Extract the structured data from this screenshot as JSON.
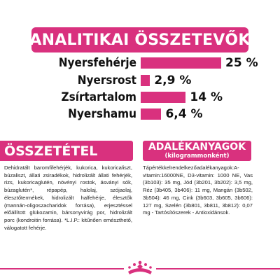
{
  "analytical": {
    "title": "ANALITIKAI ÖSSZETEVŐK",
    "rows": [
      {
        "label": "Nyersfehérje",
        "value": "25 %",
        "percent": 25
      },
      {
        "label": "Nyersrost",
        "value": "2,9 %",
        "percent": 2.9
      },
      {
        "label": "Zsírtartalom",
        "value": "14 %",
        "percent": 14
      },
      {
        "label": "Nyershamu",
        "value": "6,4 %",
        "percent": 6.4
      }
    ]
  },
  "composition": {
    "title": "ÖSSZETÉTEL",
    "text": "Dehidratált baromfifehérjék, kukorica, kukoricaliszt, búzaliszt, állati zsiradékok, hidrolizált állati fehérjék, rizs, kukoricaglutén, növényi rostok, ásványi sók, búzaglutén*, répapép, halolaj, szójaolaj, élesztőtermékek, hidrolizált halfehérje, élesztők (mannán-oligoszacharidok forrása), erjesztéssel előállított glükozamin, bársonyvirág por, hidrolizált porc (kondroitin forrása). *L.I.P.: kitűnően emészthető, válogatott fehérje."
  },
  "additives": {
    "title": "ADALÉKANYAGOK",
    "subtitle": "(kilogrammonként)",
    "text": "Tápértékkelrendelkezőadalékanyagok:A-vitamin:16000NE, D3-vitamin: 1000 NE, Vas (3b103): 35 mg, Jód (3b201, 3b202): 3,5 mg, Réz (3b405, 3b406): 11 mg, Mangán (3b502, 3b504): 46 mg, Cink (3b603, 3b605, 3b606): 127 mg, Szelén (3b801, 3b811, 3b812): 0,07 mg - Tartósítószerek - Antioxidánsok."
  },
  "colors": {
    "accent": "#d9317e"
  },
  "logo": {
    "name": "royal-canin-crown-logo"
  }
}
